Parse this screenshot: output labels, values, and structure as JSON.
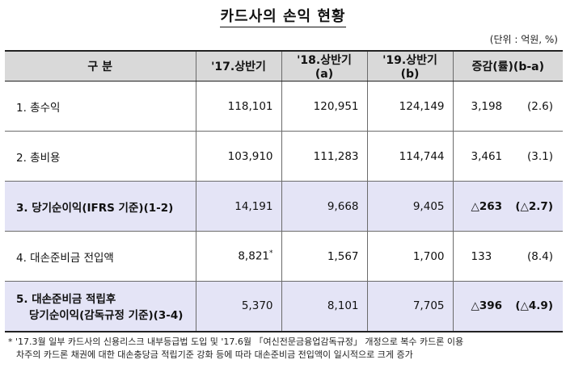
{
  "title": "카드사의 손익 현황",
  "unit": "(단위 : 억원, %)",
  "headers": {
    "category": "구 분",
    "h2017": "'17.상반기",
    "h2018": "'18.상반기(a)",
    "h2019": "'19.상반기(b)",
    "change": "증감(률)(b-a)"
  },
  "rows": [
    {
      "label": "1. 총수익",
      "v2017": "118,101",
      "v2018": "120,951",
      "v2019": "124,149",
      "chg": "3,198",
      "rate": "(2.6)"
    },
    {
      "label": "2. 총비용",
      "v2017": "103,910",
      "v2018": "111,283",
      "v2019": "114,744",
      "chg": "3,461",
      "rate": "(3.1)"
    },
    {
      "label": "3. 당기순이익(IFRS 기준)(1-2)",
      "v2017": "14,191",
      "v2018": "9,668",
      "v2019": "9,405",
      "chg": "△263",
      "rate": "(△2.7)"
    },
    {
      "label": "4. 대손준비금 전입액",
      "v2017": "8,821",
      "v2017_mark": "*",
      "v2018": "1,567",
      "v2019": "1,700",
      "chg": "133",
      "rate": "(8.4)"
    },
    {
      "label_line1": "5. 대손준비금 적립후",
      "label_line2": "당기순이익(감독규정 기준)(3-4)",
      "v2017": "5,370",
      "v2018": "8,101",
      "v2019": "7,705",
      "chg": "△396",
      "rate": "(△4.9)"
    }
  ],
  "footnote": {
    "line1": "* '17.3월 일부 카드사의 신용리스크 내부등급법 도입 및 '17.6월 「여신전문금융업감독규정」 개정으로 복수 카드론 이용",
    "line2": "차주의 카드론 채권에 대한 대손충당금 적립기준 강화 등에 따라 대손준비금 전입액이 일시적으로 크게 증가"
  }
}
